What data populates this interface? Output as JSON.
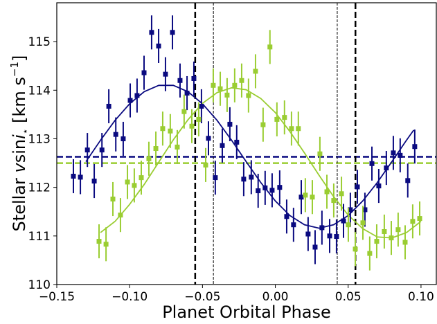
{
  "chart_data": {
    "type": "scatter",
    "xlabel": "Planet Orbital Phase",
    "ylabel": [
      {
        "text": "Stellar "
      },
      {
        "text": "v",
        "style": "italic"
      },
      {
        "text": "sin"
      },
      {
        "text": "i",
        "style": "italic"
      },
      {
        "text": "⋆",
        "style": "sub"
      },
      {
        "text": "  [km s"
      },
      {
        "text": "−1",
        "style": "sup"
      },
      {
        "text": "]"
      }
    ],
    "xlim": [
      -0.15,
      0.1105
    ],
    "ylim": [
      110,
      115.8
    ],
    "xticks": [
      {
        "value": -0.15,
        "label": "−0.15"
      },
      {
        "value": -0.1,
        "label": "−0.10"
      },
      {
        "value": -0.05,
        "label": "−0.05"
      },
      {
        "value": 0,
        "label": "0.00"
      },
      {
        "value": 0.05,
        "label": "0.05"
      },
      {
        "value": 0.1,
        "label": "0.10"
      }
    ],
    "yticks": [
      110,
      111,
      112,
      113,
      114,
      115
    ],
    "series": [
      {
        "color": "#0a0a80",
        "error": 0.35,
        "x": [
          -0.1386,
          -0.1338,
          -0.129,
          -0.1243,
          -0.119,
          -0.1143,
          -0.1095,
          -0.1044,
          -0.0996,
          -0.0949,
          -0.0901,
          -0.0849,
          -0.0801,
          -0.0754,
          -0.0706,
          -0.0654,
          -0.0606,
          -0.0559,
          -0.0507,
          -0.0459,
          -0.0412,
          -0.0364,
          -0.0312,
          -0.0265,
          -0.0217,
          -0.0165,
          -0.0118,
          -0.007,
          -0.0022,
          0.003,
          0.0078,
          0.0125,
          0.0178,
          0.0225,
          0.0273,
          0.032,
          0.0373,
          0.042,
          0.0468,
          0.0515,
          0.0563,
          0.0615,
          0.0663,
          0.071,
          0.0762,
          0.081,
          0.0857,
          0.0909,
          0.0957
        ],
        "values": [
          112.23,
          112.21,
          112.77,
          112.13,
          112.77,
          113.67,
          113.09,
          113.0,
          113.79,
          113.89,
          114.36,
          115.19,
          114.91,
          114.33,
          115.19,
          114.2,
          113.94,
          114.24,
          113.67,
          113.01,
          112.2,
          112.86,
          113.3,
          112.93,
          112.17,
          112.21,
          111.93,
          111.99,
          111.94,
          112.0,
          111.4,
          111.23,
          111.8,
          111.04,
          110.77,
          111.17,
          111.0,
          110.99,
          111.31,
          111.54,
          112.01,
          111.54,
          112.49,
          112.03,
          112.4,
          112.71,
          112.66,
          112.14,
          112.84
        ]
      },
      {
        "color": "#9acd32",
        "error": 0.35,
        "x": [
          -0.121,
          -0.1162,
          -0.1115,
          -0.1063,
          -0.1015,
          -0.0968,
          -0.092,
          -0.0868,
          -0.082,
          -0.0773,
          -0.0721,
          -0.0673,
          -0.0626,
          -0.0573,
          -0.0526,
          -0.0478,
          -0.0426,
          -0.0378,
          -0.0331,
          -0.0279,
          -0.0231,
          -0.0184,
          -0.0136,
          -0.0084,
          -0.0037,
          0.0011,
          0.0063,
          0.0111,
          0.0158,
          0.0206,
          0.0254,
          0.0306,
          0.0354,
          0.0401,
          0.0454,
          0.0501,
          0.0549,
          0.0601,
          0.0648,
          0.0696,
          0.0748,
          0.0796,
          0.0843,
          0.0891,
          0.0943,
          0.0991
        ],
        "values": [
          110.89,
          110.83,
          111.76,
          111.43,
          112.11,
          112.04,
          112.2,
          112.59,
          112.8,
          113.21,
          113.16,
          112.83,
          113.56,
          113.26,
          113.4,
          112.46,
          114.1,
          114.03,
          113.9,
          114.1,
          114.2,
          113.89,
          114.39,
          113.29,
          114.89,
          113.4,
          113.44,
          113.21,
          113.21,
          111.84,
          111.8,
          112.69,
          111.91,
          111.73,
          111.87,
          111.23,
          110.73,
          111.27,
          110.64,
          110.89,
          111.09,
          110.96,
          111.13,
          110.87,
          111.3,
          111.36
        ]
      }
    ],
    "fits": [
      {
        "color": "#0a0a80",
        "x": [
          -0.13,
          -0.12,
          -0.11,
          -0.1,
          -0.09,
          -0.08,
          -0.07,
          -0.06,
          -0.05,
          -0.04,
          -0.03,
          -0.02,
          -0.01,
          0,
          0.01,
          0.02,
          0.03,
          0.04,
          0.05,
          0.06,
          0.07,
          0.08,
          0.09,
          0.095
        ],
        "values": [
          112.53,
          112.97,
          113.38,
          113.72,
          113.97,
          114.1,
          114.1,
          113.97,
          113.72,
          113.38,
          112.97,
          112.53,
          112.1,
          111.72,
          111.42,
          111.23,
          111.16,
          111.23,
          111.42,
          111.72,
          112.1,
          112.53,
          112.97,
          113.18
        ]
      },
      {
        "color": "#9acd32",
        "x": [
          -0.12,
          -0.11,
          -0.1,
          -0.09,
          -0.08,
          -0.07,
          -0.06,
          -0.05,
          -0.04,
          -0.03,
          -0.02,
          -0.01,
          0,
          0.01,
          0.02,
          0.03,
          0.04,
          0.05,
          0.06,
          0.07,
          0.08,
          0.09,
          0.1
        ],
        "values": [
          111.07,
          111.3,
          111.65,
          112.06,
          112.52,
          112.98,
          113.39,
          113.73,
          113.95,
          114.05,
          114.01,
          113.83,
          113.54,
          113.15,
          112.71,
          112.25,
          111.81,
          111.43,
          111.15,
          110.98,
          110.96,
          111.07,
          111.3
        ]
      }
    ],
    "hlines": [
      {
        "value": 112.63,
        "color": "#0a0a80"
      },
      {
        "value": 112.5,
        "color": "#9acd32"
      }
    ],
    "vlines": [
      {
        "value": -0.055,
        "style": "thick"
      },
      {
        "value": 0.055,
        "style": "thick"
      },
      {
        "value": -0.0425,
        "style": "thin"
      },
      {
        "value": 0.0425,
        "style": "thin"
      }
    ]
  }
}
